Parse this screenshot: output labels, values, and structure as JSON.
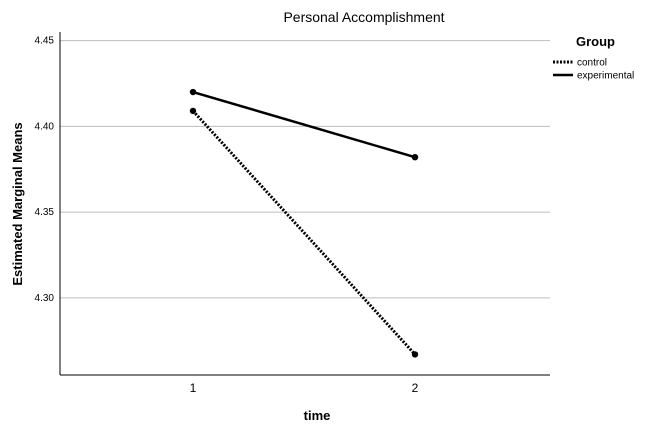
{
  "chart_data": {
    "type": "line",
    "title": "Personal Accomplishment",
    "xlabel": "time",
    "ylabel": "Estimated Marginal Means",
    "categories": [
      "1",
      "2"
    ],
    "ylim": [
      4.255,
      4.455
    ],
    "yticks": [
      4.3,
      4.35,
      4.4,
      4.45
    ],
    "ytick_labels": [
      "4.30",
      "4.35",
      "4.40",
      "4.45"
    ],
    "grid": true,
    "legend": {
      "title": "Group",
      "placement": "right"
    },
    "series": [
      {
        "name": "control",
        "values": [
          4.409,
          4.267
        ],
        "style": "dotted",
        "color": "#000000"
      },
      {
        "name": "experimental",
        "values": [
          4.42,
          4.382
        ],
        "style": "solid",
        "color": "#000000"
      }
    ]
  }
}
